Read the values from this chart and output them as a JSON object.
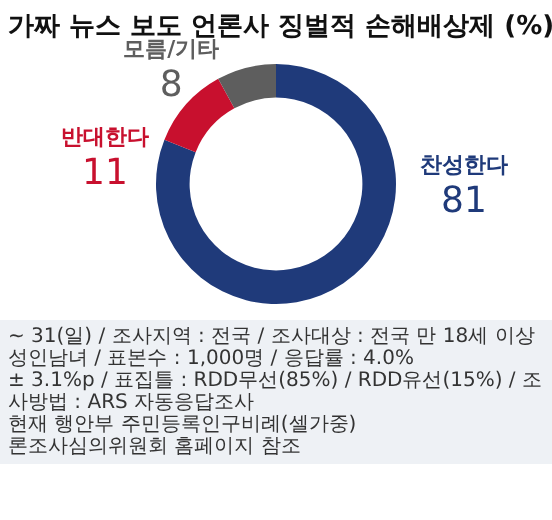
{
  "chart_data": {
    "type": "donut",
    "title": "가짜 뉴스 보도 언론사 징벌적 손해배상제 (%)",
    "categories": [
      "찬성한다",
      "반대한다",
      "모름/기타"
    ],
    "values": [
      81,
      11,
      8
    ],
    "colors": [
      "#1f3a7a",
      "#c8102e",
      "#5e5e5e"
    ],
    "data_labels": true,
    "annotations": [
      "~ 31(일) / 조사지역 : 전국 / 조사대상 : 전국 만 18세 이상 성인남녀 / 표본수 : 1,000명 / 응답률 : 4.0%",
      "± 3.1%p / 표집틀 : RDD무선(85%) / RDD유선(15%) / 조사방법 : ARS 자동응답조사",
      "현재 행안부 주민등록인구비례(셀가중)",
      "론조사심의위원회 홈페이지 참조"
    ]
  }
}
